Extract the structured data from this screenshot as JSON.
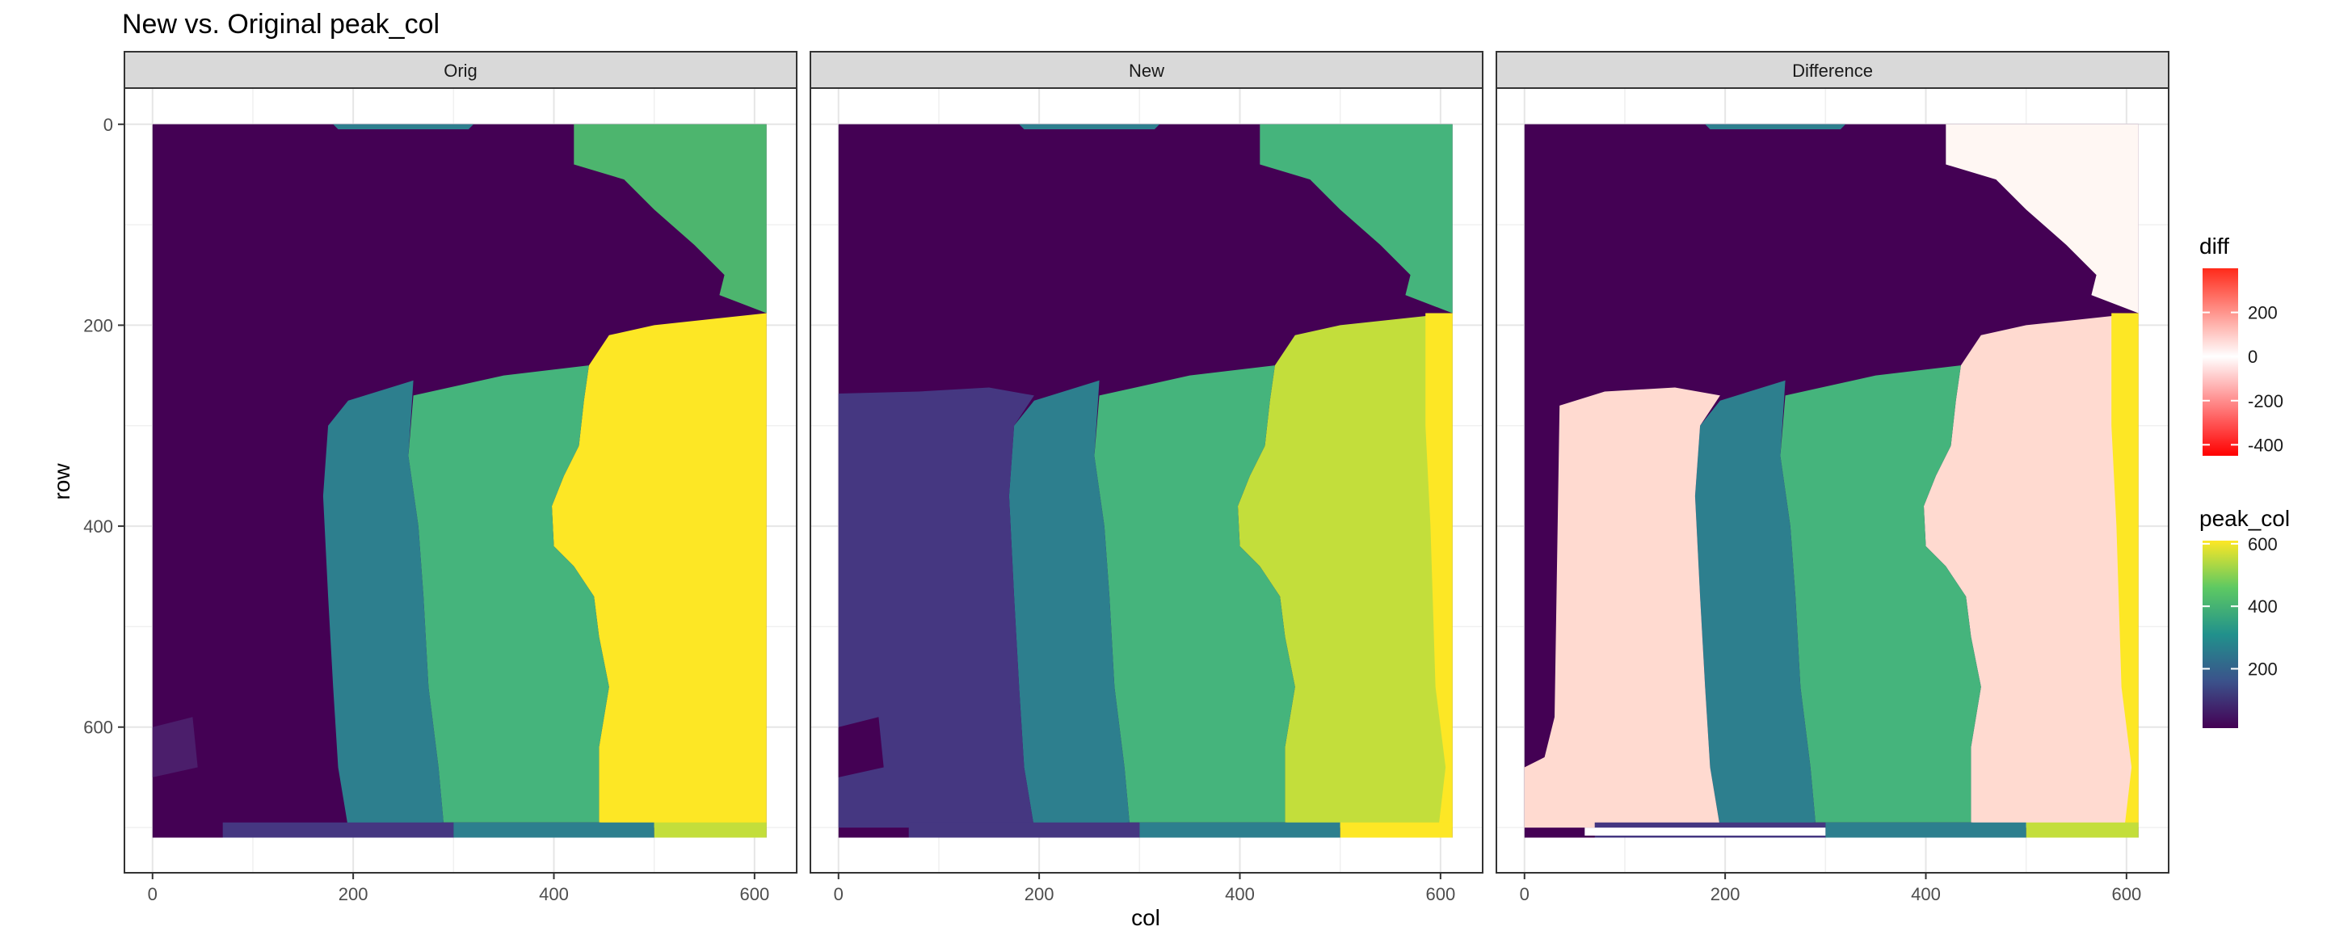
{
  "chart_data": {
    "type": "heatmap",
    "title": "New vs. Original peak_col",
    "xlabel": "col",
    "ylabel": "row",
    "facets": [
      "Orig",
      "New",
      "Difference"
    ],
    "xlim": [
      -28,
      642
    ],
    "ylim": [
      745,
      -36
    ],
    "x_ticks": [
      0,
      200,
      400,
      600
    ],
    "y_ticks": [
      0,
      200,
      400,
      600
    ],
    "y_reversed": true,
    "grid": true,
    "legends": [
      {
        "title": "diff",
        "type": "gradient",
        "range": [
          -450,
          400
        ],
        "ticks": [
          200,
          0,
          -200,
          -400
        ],
        "colors": [
          "#ff0000",
          "#ffffff",
          "#ff0000"
        ]
      },
      {
        "title": "peak_col",
        "type": "gradient",
        "range": [
          10,
          610
        ],
        "ticks": [
          600,
          400,
          200
        ],
        "colors": [
          "#440154",
          "#3b528b",
          "#21918c",
          "#5ec962",
          "#fde725"
        ]
      }
    ],
    "colors": {
      "region_a": "#440154",
      "region_b": "#453781",
      "region_c": "#2d7f8e",
      "region_d": "#45b47c",
      "region_e": "#4db56e",
      "region_f": "#c3de3b",
      "region_g": "#fde725",
      "diff_light": "#ffdad0",
      "diff_pale": "#fff7f3"
    }
  }
}
